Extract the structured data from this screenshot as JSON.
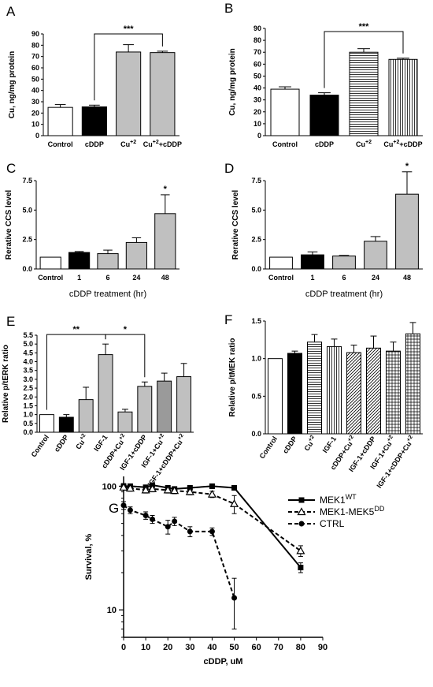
{
  "chart_data": [
    {
      "panel": "A",
      "type": "bar",
      "ylabel": "Cu, ng/mg protein",
      "ylim": [
        0,
        90
      ],
      "yticks": [
        0,
        10,
        20,
        30,
        40,
        50,
        60,
        70,
        80,
        90
      ],
      "categories": [
        "Control",
        "cDDP",
        "Cu+2",
        "Cu+2+cDDP"
      ],
      "category_labels": [
        [
          "Control"
        ],
        [
          "cDDP"
        ],
        [
          "Cu",
          "+2",
          ""
        ],
        [
          "Cu",
          "+2",
          "+cDDP"
        ]
      ],
      "values": [
        25,
        25.5,
        74,
        73.5
      ],
      "errors": [
        2.5,
        1.5,
        6.5,
        1.2
      ],
      "fills": [
        "white",
        "black",
        "gray",
        "gray"
      ],
      "significance": [
        {
          "from": 1,
          "to": 3,
          "label": "***"
        }
      ]
    },
    {
      "panel": "B",
      "type": "bar",
      "ylabel": "Cu, ng/mg protein",
      "ylim": [
        0,
        90
      ],
      "yticks": [
        0,
        10,
        20,
        30,
        40,
        50,
        60,
        70,
        80,
        90
      ],
      "categories": [
        "Control",
        "cDDP",
        "Cu+2",
        "Cu+2+cDDP"
      ],
      "category_labels": [
        [
          "Control"
        ],
        [
          "cDDP"
        ],
        [
          "Cu",
          "+2",
          ""
        ],
        [
          "Cu",
          "+2",
          "+cDDP"
        ]
      ],
      "values": [
        39,
        34,
        70,
        64
      ],
      "errors": [
        2,
        2,
        3,
        1
      ],
      "fills": [
        "white",
        "black",
        "hstripe",
        "vstripe"
      ],
      "significance": [
        {
          "from": 1,
          "to": 3,
          "label": "***"
        }
      ]
    },
    {
      "panel": "C",
      "type": "bar",
      "ylabel": "Rerative CCS level",
      "xlabel": "cDDP treatment (hr)",
      "ylim": [
        0,
        7.5
      ],
      "yticks": [
        "0.0",
        "2.5",
        "5.0",
        "7.5"
      ],
      "categories": [
        "Control",
        "1",
        "6",
        "24",
        "48"
      ],
      "values": [
        1.0,
        1.4,
        1.3,
        2.25,
        4.7
      ],
      "errors": [
        0,
        0.08,
        0.3,
        0.4,
        1.6
      ],
      "fills": [
        "white",
        "black",
        "gray",
        "gray",
        "gray"
      ],
      "significance": [
        {
          "bar": 4,
          "label": "*"
        }
      ]
    },
    {
      "panel": "D",
      "type": "bar",
      "ylabel": "Rerative CCS level",
      "xlabel": "cDDP treatment (hr)",
      "ylim": [
        0,
        7.5
      ],
      "yticks": [
        "0.0",
        "2.5",
        "5.0",
        "7.5"
      ],
      "categories": [
        "Control",
        "1",
        "6",
        "24",
        "48"
      ],
      "values": [
        1.0,
        1.2,
        1.1,
        2.35,
        6.35
      ],
      "errors": [
        0,
        0.25,
        0.05,
        0.4,
        1.9
      ],
      "fills": [
        "white",
        "black",
        "gray",
        "gray",
        "gray"
      ],
      "significance": [
        {
          "bar": 4,
          "label": "*"
        }
      ]
    },
    {
      "panel": "E",
      "type": "bar",
      "ylabel": "Relative p/tERK ratio",
      "ylim": [
        0,
        5.5
      ],
      "yticks": [
        "0.0",
        "0.5",
        "1.0",
        "1.5",
        "2.0",
        "2.5",
        "3.0",
        "3.5",
        "4.0",
        "4.5",
        "5.0",
        "5.5"
      ],
      "categories": [
        "Control",
        "cDDP",
        "Cu+2",
        "IGF-1",
        "cDDP+Cu+2",
        "IGF-1+cDDP",
        "IGF-1+Cu+2",
        "IGF-1+cDDP+Cu+2"
      ],
      "category_labels": [
        [
          "Control"
        ],
        [
          "cDDP"
        ],
        [
          "Cu",
          "+2",
          ""
        ],
        [
          "IGF-1"
        ],
        [
          "cDDP+Cu",
          "+2",
          ""
        ],
        [
          "IGF-1+cDDP"
        ],
        [
          "IGF-1+Cu",
          "+2",
          ""
        ],
        [
          "IGF-1+cDDP+Cu",
          "+2",
          ""
        ]
      ],
      "values": [
        1.0,
        0.85,
        1.85,
        4.4,
        1.15,
        2.6,
        2.9,
        3.15
      ],
      "errors": [
        0,
        0.15,
        0.7,
        0.6,
        0.15,
        0.25,
        0.45,
        0.75
      ],
      "fills": [
        "white",
        "black",
        "gray",
        "gray",
        "gray",
        "gray",
        "darkgray",
        "gray"
      ],
      "significance": [
        {
          "from": 0,
          "to": 3,
          "label": "**"
        },
        {
          "from": 3,
          "to": 5,
          "label": "*"
        }
      ]
    },
    {
      "panel": "F",
      "type": "bar",
      "ylabel": "Relative p/tMEK ratio",
      "ylim": [
        0,
        1.5
      ],
      "yticks": [
        "0.0",
        "0.5",
        "1.0",
        "1.5"
      ],
      "categories": [
        "Control",
        "cDDP",
        "Cu+2",
        "IGF-1",
        "cDDP+Cu+2",
        "IGF-1+cDDP",
        "IGF-1+Cu+2",
        "IGF-1+cDDP+Cu+2"
      ],
      "category_labels": [
        [
          "Control"
        ],
        [
          "cDDP"
        ],
        [
          "Cu",
          "+2",
          ""
        ],
        [
          "IGF-1"
        ],
        [
          "cDDP+Cu",
          "+2",
          ""
        ],
        [
          "IGF-1+cDDP"
        ],
        [
          "IGF-1+Cu",
          "+2",
          ""
        ],
        [
          "IGF-1+cDDP+Cu",
          "+2",
          ""
        ]
      ],
      "values": [
        1.0,
        1.07,
        1.22,
        1.16,
        1.08,
        1.14,
        1.1,
        1.33
      ],
      "errors": [
        0,
        0.03,
        0.1,
        0.1,
        0.1,
        0.16,
        0.12,
        0.15
      ],
      "fills": [
        "white",
        "black",
        "hstripe",
        "vstripe",
        "diag",
        "diag",
        "grid",
        "grid"
      ],
      "significance": []
    },
    {
      "panel": "G",
      "type": "line",
      "ylabel": "Survival, %",
      "xlabel": "cDDP, uM",
      "yscale": "log",
      "ylim": [
        6,
        120
      ],
      "yticks": [
        10,
        100
      ],
      "xlim": [
        0,
        90
      ],
      "xticks": [
        0,
        10,
        20,
        30,
        40,
        50,
        60,
        70,
        80,
        90
      ],
      "series": [
        {
          "name": "MEK1",
          "name_sup": "WT",
          "marker": "square",
          "dash": false,
          "x": [
            0,
            3,
            10,
            13,
            20,
            23,
            30,
            40,
            50,
            80
          ],
          "y": [
            100,
            100,
            98,
            102,
            97,
            95,
            97,
            100,
            97,
            22
          ],
          "err": [
            5,
            4,
            4,
            4,
            4,
            4,
            4,
            4,
            4,
            2
          ]
        },
        {
          "name": "MEK1-MEK5",
          "name_sup": "DD",
          "marker": "triangle",
          "dash": true,
          "x": [
            0,
            3,
            10,
            13,
            20,
            23,
            30,
            40,
            50,
            80
          ],
          "y": [
            98,
            96,
            93,
            95,
            93,
            92,
            90,
            86,
            72,
            30
          ],
          "err": [
            5,
            5,
            5,
            5,
            5,
            5,
            5,
            5,
            12,
            3
          ]
        },
        {
          "name": "CTRL",
          "name_sup": "",
          "marker": "circle",
          "dash": true,
          "x": [
            0,
            3,
            10,
            13,
            20,
            23,
            30,
            40,
            50
          ],
          "y": [
            70,
            64,
            58,
            54,
            47,
            52,
            43,
            43,
            12.5
          ],
          "err": [
            5,
            4,
            4,
            4,
            6,
            4,
            4,
            3,
            5.5
          ]
        }
      ]
    }
  ]
}
